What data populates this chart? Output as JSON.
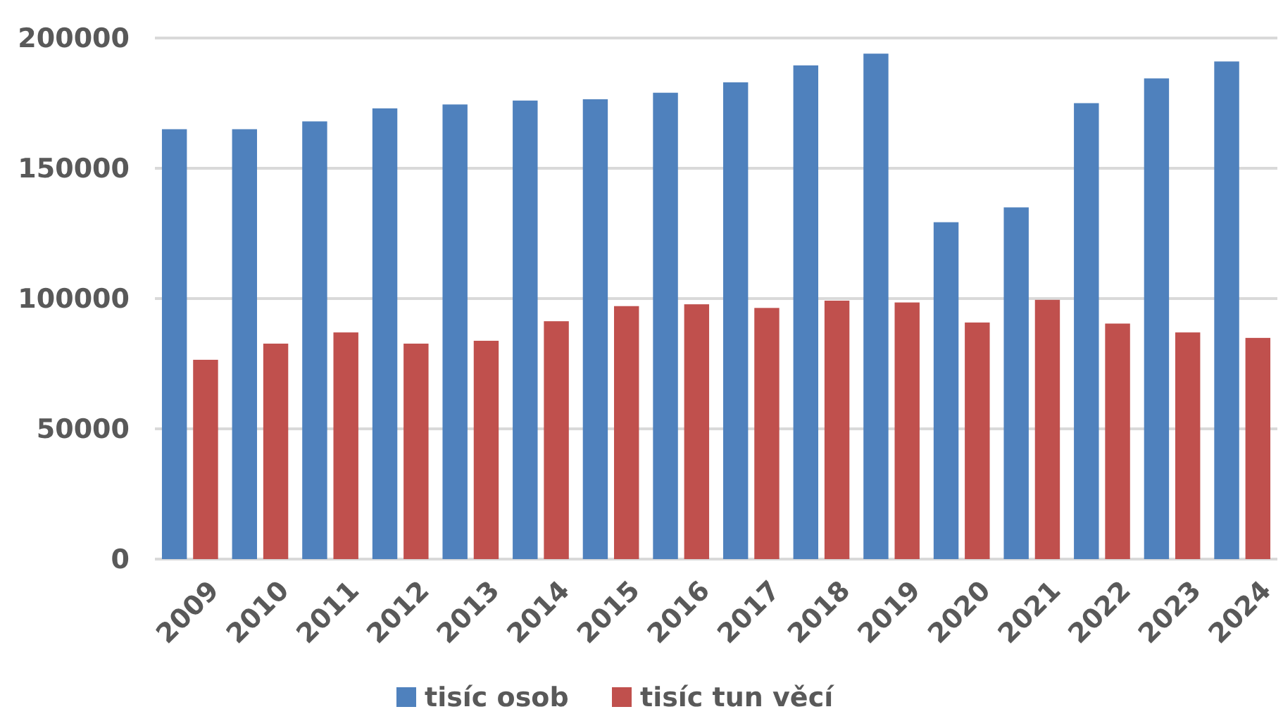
{
  "chart_data": {
    "type": "bar",
    "categories": [
      "2009",
      "2010",
      "2011",
      "2012",
      "2013",
      "2014",
      "2015",
      "2016",
      "2017",
      "2018",
      "2019",
      "2020",
      "2021",
      "2022",
      "2023",
      "2024"
    ],
    "series": [
      {
        "name": "tisíc osob",
        "color": "#4f81bd",
        "values": [
          165000,
          165000,
          168000,
          173000,
          174500,
          176000,
          176500,
          179000,
          183000,
          189500,
          194000,
          129300,
          135000,
          175000,
          184500,
          191000
        ]
      },
      {
        "name": "tisíc tun věcí",
        "color": "#c0504d",
        "values": [
          76500,
          82700,
          87000,
          82700,
          83800,
          91300,
          97100,
          97800,
          96400,
          99200,
          98500,
          90800,
          99500,
          90400,
          87000,
          84900
        ]
      }
    ],
    "ylim": [
      0,
      200000
    ],
    "yticks": [
      0,
      50000,
      100000,
      150000,
      200000
    ],
    "grid": "y",
    "legend": "bottom"
  }
}
